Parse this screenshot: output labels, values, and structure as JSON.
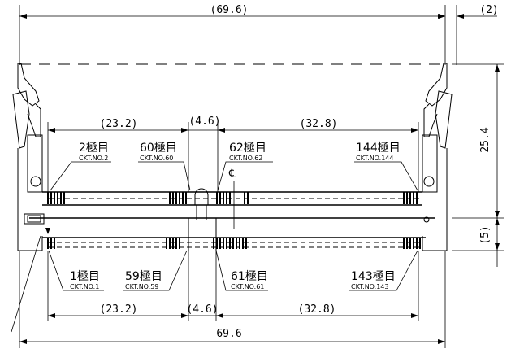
{
  "dimensions": {
    "top_overall": "(69.6)",
    "top_right": "(2)",
    "upper_left": "(23.2)",
    "upper_mid": "(4.6)",
    "upper_right": "(32.8)",
    "height_main": "25.4",
    "height_low": "(5)",
    "lower_left": "(23.2)",
    "lower_mid": "(4.6)",
    "lower_right": "(32.8)",
    "bottom_overall": "69.6"
  },
  "labels": {
    "pin2": "2極目",
    "pin2_ckt": "CKT.NO.2",
    "pin60": "60極目",
    "pin60_ckt": "CKT.NO.60",
    "pin62": "62極目",
    "pin62_ckt": "CKT.NO.62",
    "pin144": "144極目",
    "pin144_ckt": "CKT.NO.144",
    "pin1": "1極目",
    "pin1_ckt": "CKT.NO.1",
    "pin59": "59極目",
    "pin59_ckt": "CKT.NO.59",
    "pin61": "61極目",
    "pin61_ckt": "CKT.NO.61",
    "pin143": "143極目",
    "pin143_ckt": "CKT.NO.143",
    "centerline": "℄"
  }
}
